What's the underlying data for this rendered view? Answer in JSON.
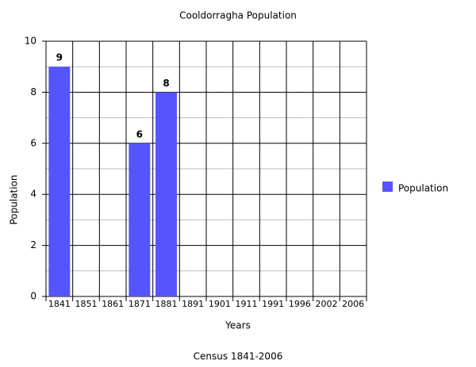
{
  "chart_data": {
    "type": "bar",
    "title": "Cooldorragha Population",
    "subtitle": "Census 1841-2006",
    "x_label": "Years",
    "y_label": "Population",
    "categories": [
      "1841",
      "1851",
      "1861",
      "1871",
      "1881",
      "1891",
      "1901",
      "1911",
      "1991",
      "1996",
      "2002",
      "2006"
    ],
    "series": [
      {
        "name": "Population",
        "color": "#5555ff",
        "values": [
          9,
          null,
          null,
          6,
          8,
          null,
          null,
          null,
          null,
          null,
          null,
          null
        ]
      }
    ],
    "ylim": [
      0,
      10
    ],
    "yticks": [
      0,
      2,
      4,
      6,
      8,
      10
    ],
    "minor_yticks": [
      1,
      3,
      5,
      7,
      9
    ],
    "grid": true,
    "legend": "right"
  }
}
